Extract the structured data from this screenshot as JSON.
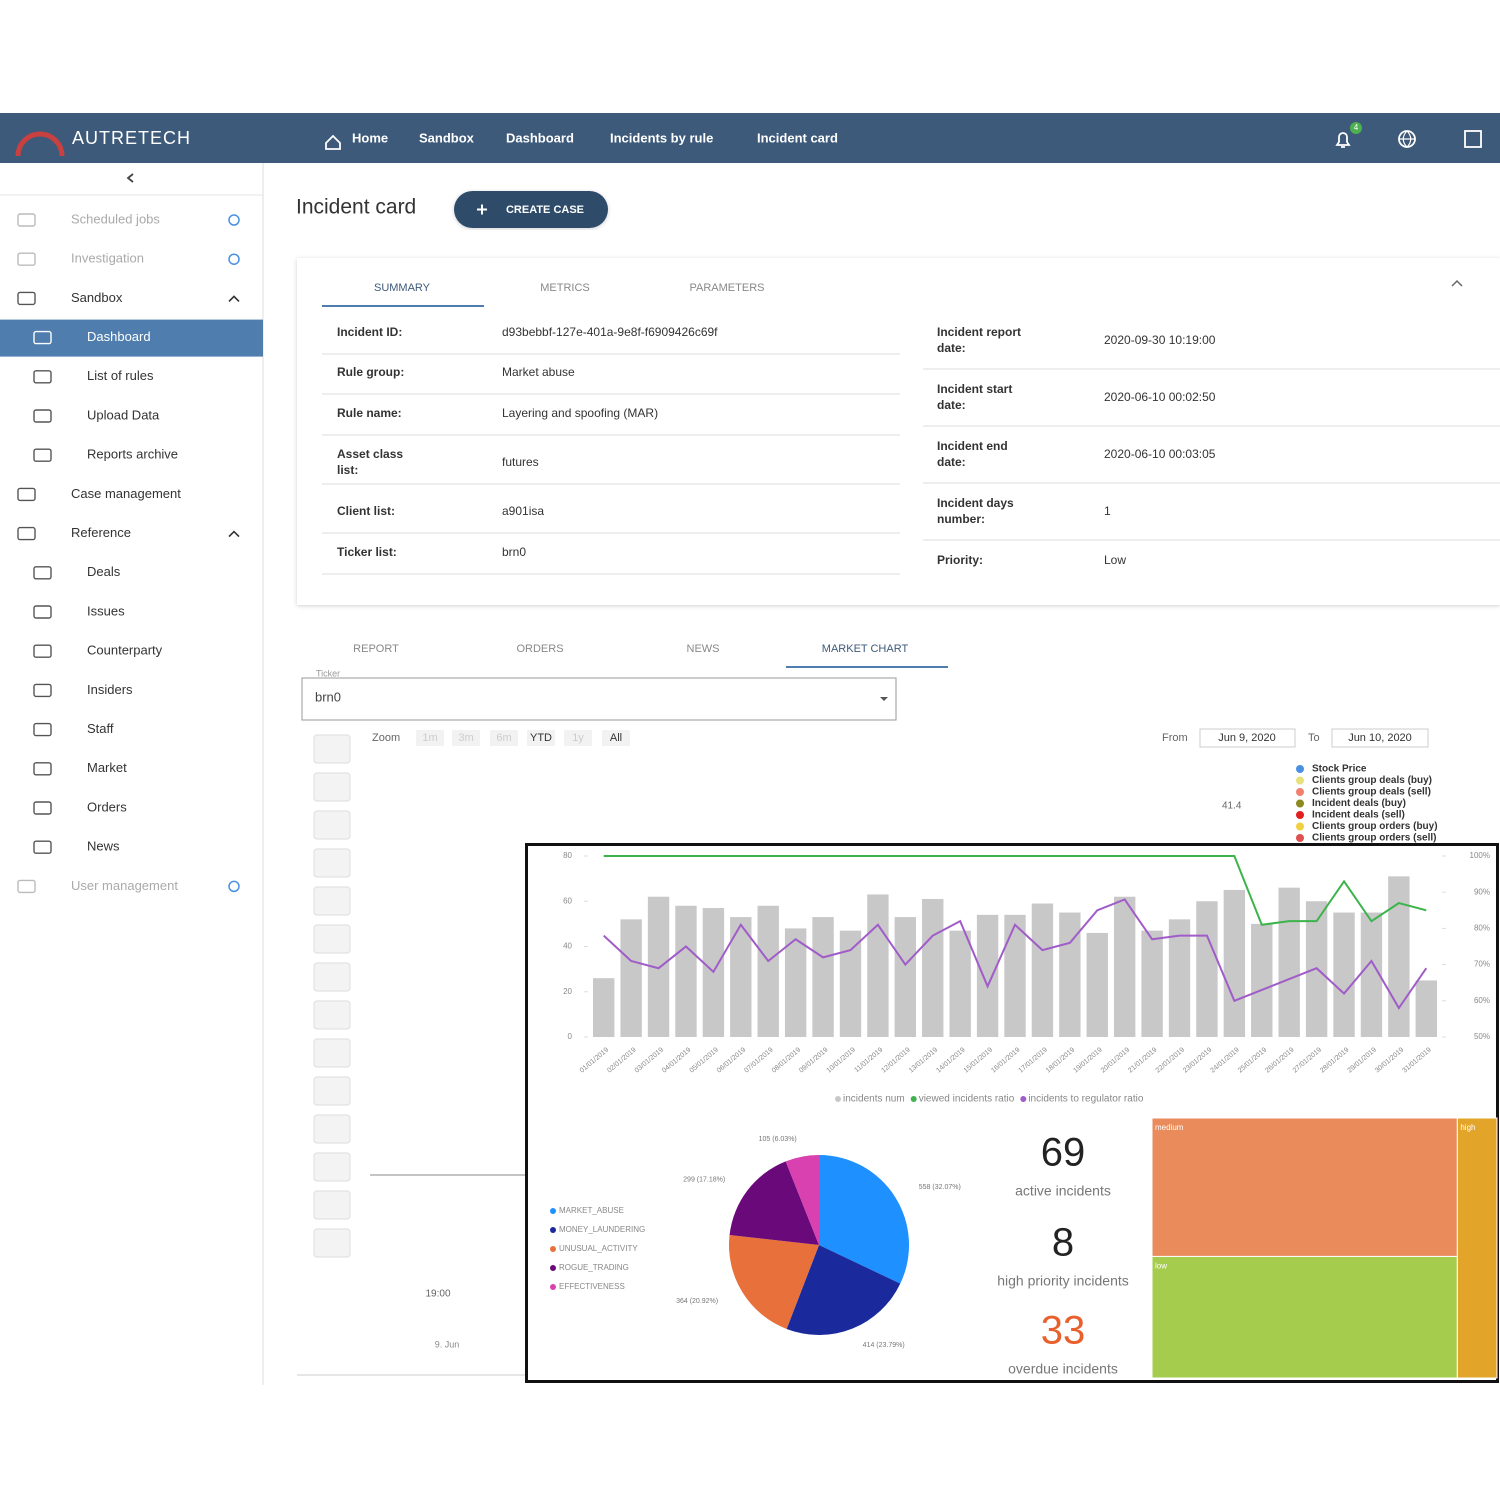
{
  "header": {
    "brand": "AUTRETECH",
    "breadcrumbs": [
      "Home",
      "Sandbox",
      "Dashboard",
      "Incidents by rule",
      "Incident card"
    ],
    "notifications": "4"
  },
  "sidebar": {
    "items": [
      "Scheduled jobs",
      "Investigation",
      "Sandbox",
      "Dashboard",
      "List of rules",
      "Upload Data",
      "Reports archive",
      "Case management",
      "Reference",
      "Deals",
      "Issues",
      "Counterparty",
      "Insiders",
      "Staff",
      "Market",
      "Orders",
      "News",
      "User management"
    ]
  },
  "page": {
    "title": "Incident card",
    "create_button": "CREATE CASE"
  },
  "summary": {
    "tabs": [
      "SUMMARY",
      "METRICS",
      "PARAMETERS"
    ],
    "left_fields": [
      [
        "Incident ID:",
        "d93bebbf-127e-401a-9e8f-f6909426c69f"
      ],
      [
        "Rule group:",
        "Market abuse"
      ],
      [
        "Rule name:",
        "Layering and spoofing (MAR)"
      ],
      [
        "Asset class list:",
        "futures"
      ],
      [
        "Client list:",
        "a901isa"
      ],
      [
        "Ticker list:",
        "brn0"
      ]
    ],
    "right_fields": [
      [
        "Incident report date:",
        "2020-09-30 10:19:00"
      ],
      [
        "Incident start date:",
        "2020-06-10 00:02:50"
      ],
      [
        "Incident end date:",
        "2020-06-10 00:03:05"
      ],
      [
        "Incident days number:",
        "1"
      ],
      [
        "Priority:",
        "Low"
      ]
    ]
  },
  "detail_tabs": [
    "REPORT",
    "ORDERS",
    "NEWS",
    "MARKET CHART"
  ],
  "ticker": {
    "label": "Ticker",
    "value": "brn0"
  },
  "stock_chart": {
    "zoom_label": "Zoom",
    "zoom_buttons": [
      "1m",
      "3m",
      "6m",
      "YTD",
      "1y",
      "All"
    ],
    "from_label": "From",
    "from": "Jun 9, 2020",
    "to_label": "To",
    "to": "Jun 10, 2020",
    "legend": [
      "Stock Price",
      "Clients group deals (buy)",
      "Clients group deals (sell)",
      "Incident deals (buy)",
      "Incident deals (sell)",
      "Clients group orders (buy)",
      "Clients group orders (sell)"
    ],
    "legend_colors": [
      "#4a90e2",
      "#e8e07a",
      "#f08070",
      "#8a8a20",
      "#e02020",
      "#f0d040",
      "#e05050"
    ],
    "price_label": "41.4",
    "time_label": "19:00",
    "navigator_label": "9. Jun"
  },
  "chart_data": [
    {
      "type": "combo",
      "categories": [
        "01/01/2019",
        "02/01/2019",
        "03/01/2019",
        "04/01/2019",
        "05/01/2019",
        "06/01/2019",
        "07/01/2019",
        "08/01/2019",
        "09/01/2019",
        "10/01/2019",
        "11/01/2019",
        "12/01/2019",
        "13/01/2019",
        "14/01/2019",
        "15/01/2019",
        "16/01/2019",
        "17/01/2019",
        "18/01/2019",
        "19/01/2019",
        "20/01/2019",
        "21/01/2019",
        "22/01/2019",
        "23/01/2019",
        "24/01/2019",
        "25/01/2019",
        "26/01/2019",
        "27/01/2019",
        "28/01/2019",
        "29/01/2019",
        "30/01/2019",
        "31/01/2019"
      ],
      "series": [
        {
          "name": "incidents num",
          "color": "#c8c8c8",
          "type": "bar",
          "values": [
            26,
            52,
            62,
            58,
            57,
            53,
            58,
            48,
            53,
            47,
            63,
            53,
            61,
            47,
            54,
            54,
            59,
            55,
            46,
            62,
            47,
            52,
            60,
            65,
            50,
            66,
            60,
            55,
            55,
            71,
            25
          ]
        },
        {
          "name": "viewed incidents ratio",
          "color": "#3cb44b",
          "type": "line",
          "axis": "y2",
          "values": [
            100,
            100,
            100,
            100,
            100,
            100,
            100,
            100,
            100,
            100,
            100,
            100,
            100,
            100,
            100,
            100,
            100,
            100,
            100,
            100,
            100,
            100,
            100,
            100,
            81,
            82,
            82,
            93,
            82,
            87,
            85
          ]
        },
        {
          "name": "incidents to regulator ratio",
          "color": "#a05cc8",
          "type": "line",
          "axis": "y2",
          "values": [
            78,
            71,
            69,
            75,
            68,
            81,
            71,
            77,
            72,
            74,
            81,
            70,
            78,
            82,
            64,
            81,
            74,
            76,
            85,
            88,
            77,
            78,
            78,
            60,
            63,
            66,
            69,
            62,
            71,
            58,
            69
          ]
        }
      ],
      "ylim": [
        0,
        80
      ],
      "yticks": [
        0,
        20,
        40,
        60,
        80
      ],
      "y2lim": [
        50,
        100
      ],
      "y2ticks": [
        {
          "value": 50,
          "label": "50%"
        },
        {
          "value": 60,
          "label": "60%"
        },
        {
          "value": 70,
          "label": "70%"
        },
        {
          "value": 80,
          "label": "80%"
        },
        {
          "value": 90,
          "label": "90%"
        },
        {
          "value": 100,
          "label": "100%"
        }
      ]
    },
    {
      "type": "pie",
      "categories": [
        "MARKET_ABUSE",
        "MONEY_LAUNDERING",
        "UNUSUAL_ACTIVITY",
        "ROGUE_TRADING",
        "EFFECTIVENESS"
      ],
      "values": [
        558,
        414,
        364,
        299,
        105
      ],
      "value_labels": [
        "558 (32.07%)",
        "414 (23.79%)",
        "364 (20.92%)",
        "299 (17.18%)",
        "105 (6.03%)"
      ],
      "colors": [
        "#1e90ff",
        "#1a2a9c",
        "#e8703a",
        "#6a0a7a",
        "#d940b0"
      ]
    },
    {
      "type": "treemap",
      "categories": [
        "medium",
        "low",
        "high"
      ],
      "values": [
        41,
        36,
        10
      ],
      "colors": [
        "#e98b5a",
        "#a6cc4e",
        "#e2a52a"
      ]
    }
  ],
  "kpis": [
    {
      "value": 69,
      "label": "active incidents"
    },
    {
      "value": 8,
      "label": "high priority incidents"
    },
    {
      "value": 33,
      "label": "overdue incidents"
    }
  ]
}
